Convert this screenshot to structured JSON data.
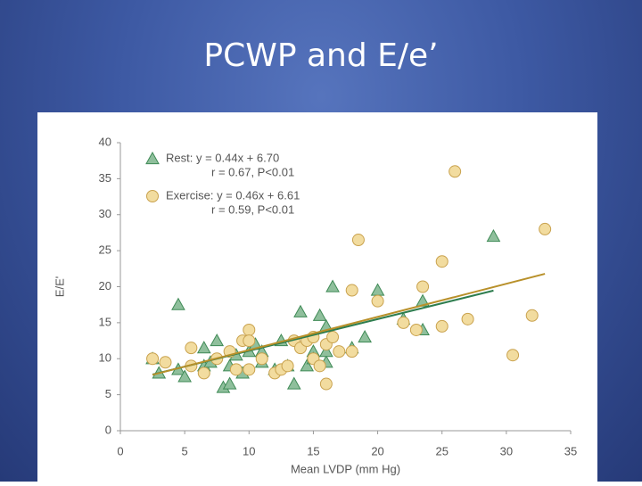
{
  "title": "PCWP and E/e’",
  "chart_data": {
    "type": "scatter",
    "xlabel": "Mean LVDP (mm Hg)",
    "ylabel": "E/E'",
    "xlim": [
      0,
      35
    ],
    "ylim": [
      0,
      40
    ],
    "xticks": [
      0,
      5,
      10,
      15,
      20,
      25,
      30,
      35
    ],
    "yticks": [
      0,
      5,
      10,
      15,
      20,
      25,
      30,
      35,
      40
    ],
    "series": [
      {
        "name": "Rest: y = 0.44x + 6.70",
        "stats": "r = 0.67, P<0.01",
        "marker": "triangle",
        "color": "#8fbf9c",
        "edge": "#3f8a56",
        "fit_color": "#2e7d4f",
        "fit_x": [
          2.5,
          29
        ],
        "fit_y": [
          7.8,
          19.46
        ],
        "x": [
          2.5,
          3,
          4.5,
          4.5,
          5,
          6.5,
          6.5,
          7.5,
          8,
          8.5,
          8.5,
          9,
          9.5,
          10,
          10.5,
          11,
          12.5,
          13,
          13.5,
          14,
          14.5,
          15,
          15.5,
          16,
          16,
          16,
          16.5,
          18,
          19,
          20,
          22,
          23.5,
          23.5,
          29,
          11,
          7,
          12,
          15
        ],
        "values": [
          10,
          8,
          8.5,
          17.5,
          7.5,
          9,
          11.5,
          12.5,
          6,
          6.5,
          9,
          10.5,
          8,
          11,
          12,
          9.5,
          12.5,
          9,
          6.5,
          16.5,
          9,
          11,
          16,
          9.5,
          11,
          14.5,
          20,
          11.5,
          13,
          19.5,
          15.5,
          14,
          18,
          27,
          11,
          9.5,
          8.5,
          10
        ]
      },
      {
        "name": "Exercise: y = 0.46x + 6.61",
        "stats": "r = 0.59, P<0.01",
        "marker": "circle",
        "color": "#f2dc9f",
        "edge": "#c9a24e",
        "fit_color": "#b8902a",
        "fit_x": [
          2.5,
          33
        ],
        "fit_y": [
          7.76,
          21.79
        ],
        "x": [
          2.5,
          3.5,
          5.5,
          5.5,
          6.5,
          7.5,
          8.5,
          9,
          9.5,
          10,
          10,
          10,
          11,
          12,
          12.5,
          13,
          13.5,
          14,
          14.5,
          15,
          15,
          15.5,
          16,
          16,
          16.5,
          17,
          18,
          18,
          18.5,
          20,
          22,
          23,
          23.5,
          25,
          25,
          26,
          27,
          30.5,
          32,
          33
        ],
        "values": [
          10,
          9.5,
          9,
          11.5,
          8,
          10,
          11,
          8.5,
          12.5,
          14,
          12.5,
          8.5,
          10,
          8,
          8.5,
          9,
          12.5,
          11.5,
          12.5,
          13,
          10,
          9,
          6.5,
          12,
          13,
          11,
          11,
          19.5,
          26.5,
          18,
          15,
          14,
          20,
          23.5,
          14.5,
          36,
          15.5,
          10.5,
          16,
          28
        ]
      }
    ]
  }
}
